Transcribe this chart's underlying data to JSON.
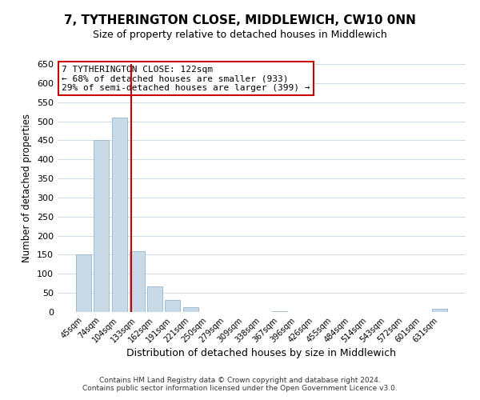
{
  "title": "7, TYTHERINGTON CLOSE, MIDDLEWICH, CW10 0NN",
  "subtitle": "Size of property relative to detached houses in Middlewich",
  "xlabel": "Distribution of detached houses by size in Middlewich",
  "ylabel": "Number of detached properties",
  "footer_line1": "Contains HM Land Registry data © Crown copyright and database right 2024.",
  "footer_line2": "Contains public sector information licensed under the Open Government Licence v3.0.",
  "bar_labels": [
    "45sqm",
    "74sqm",
    "104sqm",
    "133sqm",
    "162sqm",
    "191sqm",
    "221sqm",
    "250sqm",
    "279sqm",
    "309sqm",
    "338sqm",
    "367sqm",
    "396sqm",
    "426sqm",
    "455sqm",
    "484sqm",
    "514sqm",
    "543sqm",
    "572sqm",
    "601sqm",
    "631sqm"
  ],
  "bar_values": [
    150,
    450,
    510,
    160,
    67,
    32,
    12,
    0,
    0,
    0,
    0,
    3,
    0,
    0,
    0,
    0,
    0,
    0,
    0,
    0,
    8
  ],
  "bar_color": "#c8d9e8",
  "bar_edgecolor": "#a0bcd0",
  "ref_line_x": 2.67,
  "ref_line_color": "#cc0000",
  "annotation_title": "7 TYTHERINGTON CLOSE: 122sqm",
  "annotation_line1": "← 68% of detached houses are smaller (933)",
  "annotation_line2": "29% of semi-detached houses are larger (399) →",
  "annotation_box_edgecolor": "#cc0000",
  "ylim": [
    0,
    650
  ],
  "yticks": [
    0,
    50,
    100,
    150,
    200,
    250,
    300,
    350,
    400,
    450,
    500,
    550,
    600,
    650
  ]
}
